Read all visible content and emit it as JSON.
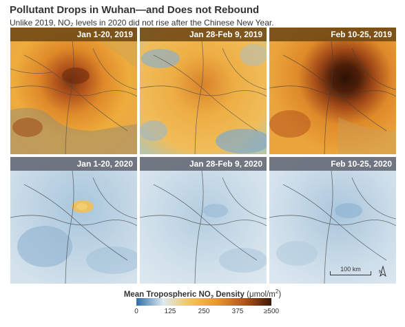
{
  "title": "Pollutant Drops in Wuhan—and Does not Rebound",
  "subtitle": "Unlike 2019, NO₂ levels in 2020 did not rise after the Chinese New Year.",
  "panels": [
    {
      "label": "Jan 1-20, 2019",
      "year": "2019",
      "no2_level": "high"
    },
    {
      "label": "Jan 28-Feb 9, 2019",
      "year": "2019",
      "no2_level": "moderate"
    },
    {
      "label": "Feb 10-25, 2019",
      "year": "2019",
      "no2_level": "very-high"
    },
    {
      "label": "Jan 1-20, 2020",
      "year": "2020",
      "no2_level": "low"
    },
    {
      "label": "Jan 28-Feb 9, 2020",
      "year": "2020",
      "no2_level": "very-low"
    },
    {
      "label": "Feb 10-25, 2020",
      "year": "2020",
      "no2_level": "very-low"
    }
  ],
  "scale_bar": {
    "label": "100 km"
  },
  "north_arrow": {
    "label": "N"
  },
  "legend": {
    "title_prefix": "Mean Tropospheric NO",
    "title_sub": "2",
    "title_suffix": " Density",
    "unit_prefix": "(μmol/m",
    "unit_sup": "2",
    "unit_suffix": ")",
    "ticks": [
      "0",
      "125",
      "250",
      "375",
      "≥500"
    ],
    "colors": [
      "#2d6ea8",
      "#dfe9ef",
      "#f3c45a",
      "#e9962f",
      "#b3541c",
      "#3d1a08"
    ]
  }
}
